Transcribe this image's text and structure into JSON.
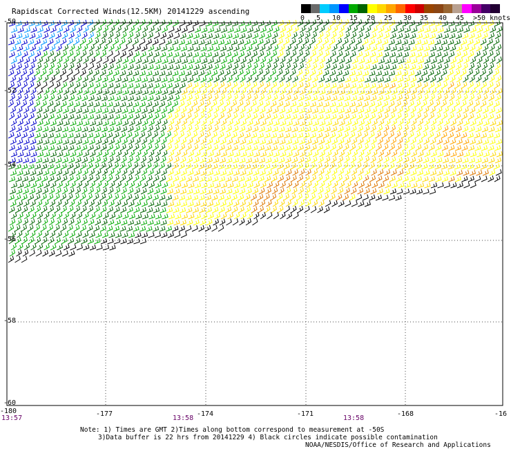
{
  "title": "Rapidscat Corrected Winds(12.5KM) 20141229 ascending",
  "legend": {
    "labels": [
      "0",
      "5",
      "10",
      "15",
      "20",
      "25",
      "30",
      "35",
      "40",
      "45",
      ">50 knots"
    ],
    "colors": [
      "#000000",
      "#6a6a6a",
      "#00ccff",
      "#0096ff",
      "#0000ff",
      "#00aa00",
      "#006400",
      "#ffff00",
      "#ffd700",
      "#ffa500",
      "#ff6600",
      "#ff0000",
      "#cc0000",
      "#994400",
      "#8b4513",
      "#996633",
      "#b8a090",
      "#ff00ff",
      "#990099",
      "#440066",
      "#220033"
    ]
  },
  "axes": {
    "lat_labels": [
      "-50",
      "-52",
      "-54",
      "-56",
      "-58",
      "-60"
    ],
    "lon_labels": [
      "-180",
      "-177",
      "-174",
      "-171",
      "-168",
      "-16"
    ]
  },
  "times": [
    "13:57",
    "13:58",
    "13:58"
  ],
  "notes": [
    "Note: 1) Times are GMT 2)Times along bottom correspond to measurement at -50S",
    "3)Data buffer is 22 hrs from 20141229 4) Black circles indicate possible contamination",
    "NOAA/NESDIS/Office of Research and Applications"
  ],
  "wind_colors": {
    "calm_black": "#000000",
    "blue": "#0000cc",
    "light_blue": "#0096ff",
    "green": "#00aa00",
    "dark_green": "#006400",
    "yellow": "#ffff00",
    "gold": "#ffd700",
    "orange": "#ffa500",
    "dark_orange": "#dd7700"
  }
}
